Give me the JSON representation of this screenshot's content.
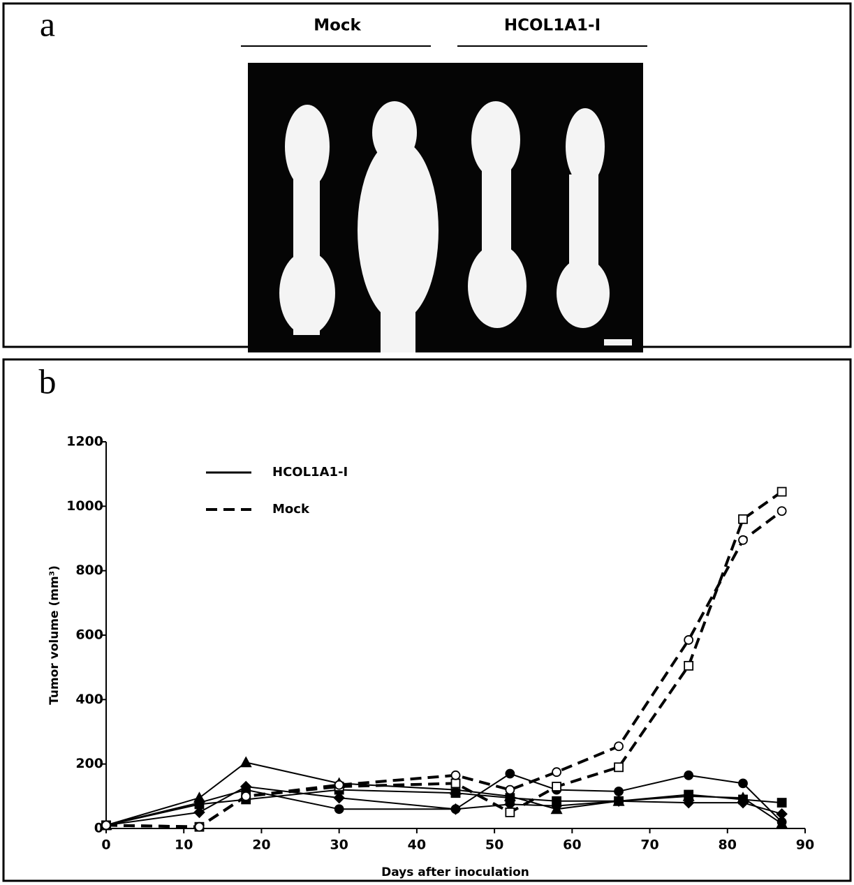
{
  "panel_a": {
    "label": "a",
    "groups": [
      "Mock",
      "HCOL1A1-I"
    ]
  },
  "panel_b": {
    "label": "b"
  },
  "chart_data": {
    "type": "line",
    "x_label": "Days after inoculation",
    "y_label": "Tumor volume (mm³)",
    "x": [
      0,
      12,
      18,
      30,
      45,
      52,
      58,
      66,
      75,
      82,
      87
    ],
    "xlim": [
      0,
      90
    ],
    "xticks": [
      0,
      10,
      20,
      30,
      40,
      50,
      60,
      70,
      80,
      90
    ],
    "ylim": [
      0,
      1200
    ],
    "yticks": [
      0,
      200,
      400,
      600,
      800,
      1000,
      1200
    ],
    "color": "#000000",
    "groups": [
      {
        "name": "HCOL1A1-I",
        "dashed": false,
        "series": [
          {
            "marker": "triangle",
            "filled": true,
            "values": [
              10,
              95,
              205,
              140,
              120,
              100,
              60,
              85,
              100,
              95,
              15
            ]
          },
          {
            "marker": "circle",
            "filled": true,
            "values": [
              10,
              80,
              120,
              60,
              60,
              170,
              120,
              115,
              165,
              140,
              20
            ]
          },
          {
            "marker": "square",
            "filled": true,
            "values": [
              10,
              75,
              90,
              120,
              110,
              95,
              85,
              85,
              105,
              90,
              80
            ]
          },
          {
            "marker": "diamond",
            "filled": true,
            "values": [
              10,
              50,
              130,
              95,
              60,
              75,
              70,
              85,
              80,
              80,
              45
            ]
          }
        ]
      },
      {
        "name": "Mock",
        "dashed": true,
        "series": [
          {
            "marker": "square",
            "filled": false,
            "values": [
              10,
              5,
              100,
              130,
              140,
              50,
              130,
              190,
              505,
              960,
              1045
            ]
          },
          {
            "marker": "circle",
            "filled": false,
            "values": [
              10,
              5,
              100,
              135,
              165,
              120,
              175,
              255,
              585,
              895,
              985
            ]
          }
        ]
      }
    ]
  }
}
